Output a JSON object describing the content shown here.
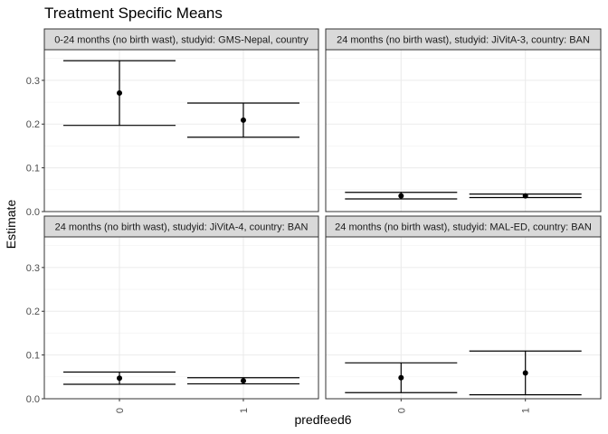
{
  "chart_data": {
    "type": "scatter",
    "title": "Treatment Specific Means",
    "xlabel": "predfeed6",
    "ylabel": "Estimate",
    "ylim": [
      0,
      0.37
    ],
    "yticks": [
      0.0,
      0.1,
      0.2,
      0.3
    ],
    "ytick_labels": [
      "0.0",
      "0.1",
      "0.2",
      "0.3"
    ],
    "categories": [
      "0",
      "1"
    ],
    "grid": true,
    "facet_layout": "2x2",
    "panels": [
      {
        "strip": "0-24 months (no birth wast), studyid: GMS-Nepal, country",
        "points": [
          {
            "x": "0",
            "estimate": 0.271,
            "lower": 0.197,
            "upper": 0.345
          },
          {
            "x": "1",
            "estimate": 0.209,
            "lower": 0.17,
            "upper": 0.248
          }
        ]
      },
      {
        "strip": "24 months (no birth wast), studyid: JiVitA-3, country: BAN",
        "points": [
          {
            "x": "0",
            "estimate": 0.036,
            "lower": 0.029,
            "upper": 0.044
          },
          {
            "x": "1",
            "estimate": 0.036,
            "lower": 0.032,
            "upper": 0.04
          }
        ]
      },
      {
        "strip": "24 months (no birth wast), studyid: JiVitA-4, country: BAN",
        "points": [
          {
            "x": "0",
            "estimate": 0.047,
            "lower": 0.033,
            "upper": 0.061
          },
          {
            "x": "1",
            "estimate": 0.041,
            "lower": 0.034,
            "upper": 0.048
          }
        ]
      },
      {
        "strip": "24 months (no birth wast), studyid: MAL-ED, country: BAN",
        "points": [
          {
            "x": "0",
            "estimate": 0.048,
            "lower": 0.014,
            "upper": 0.082
          },
          {
            "x": "1",
            "estimate": 0.059,
            "lower": 0.009,
            "upper": 0.109
          }
        ]
      }
    ]
  }
}
